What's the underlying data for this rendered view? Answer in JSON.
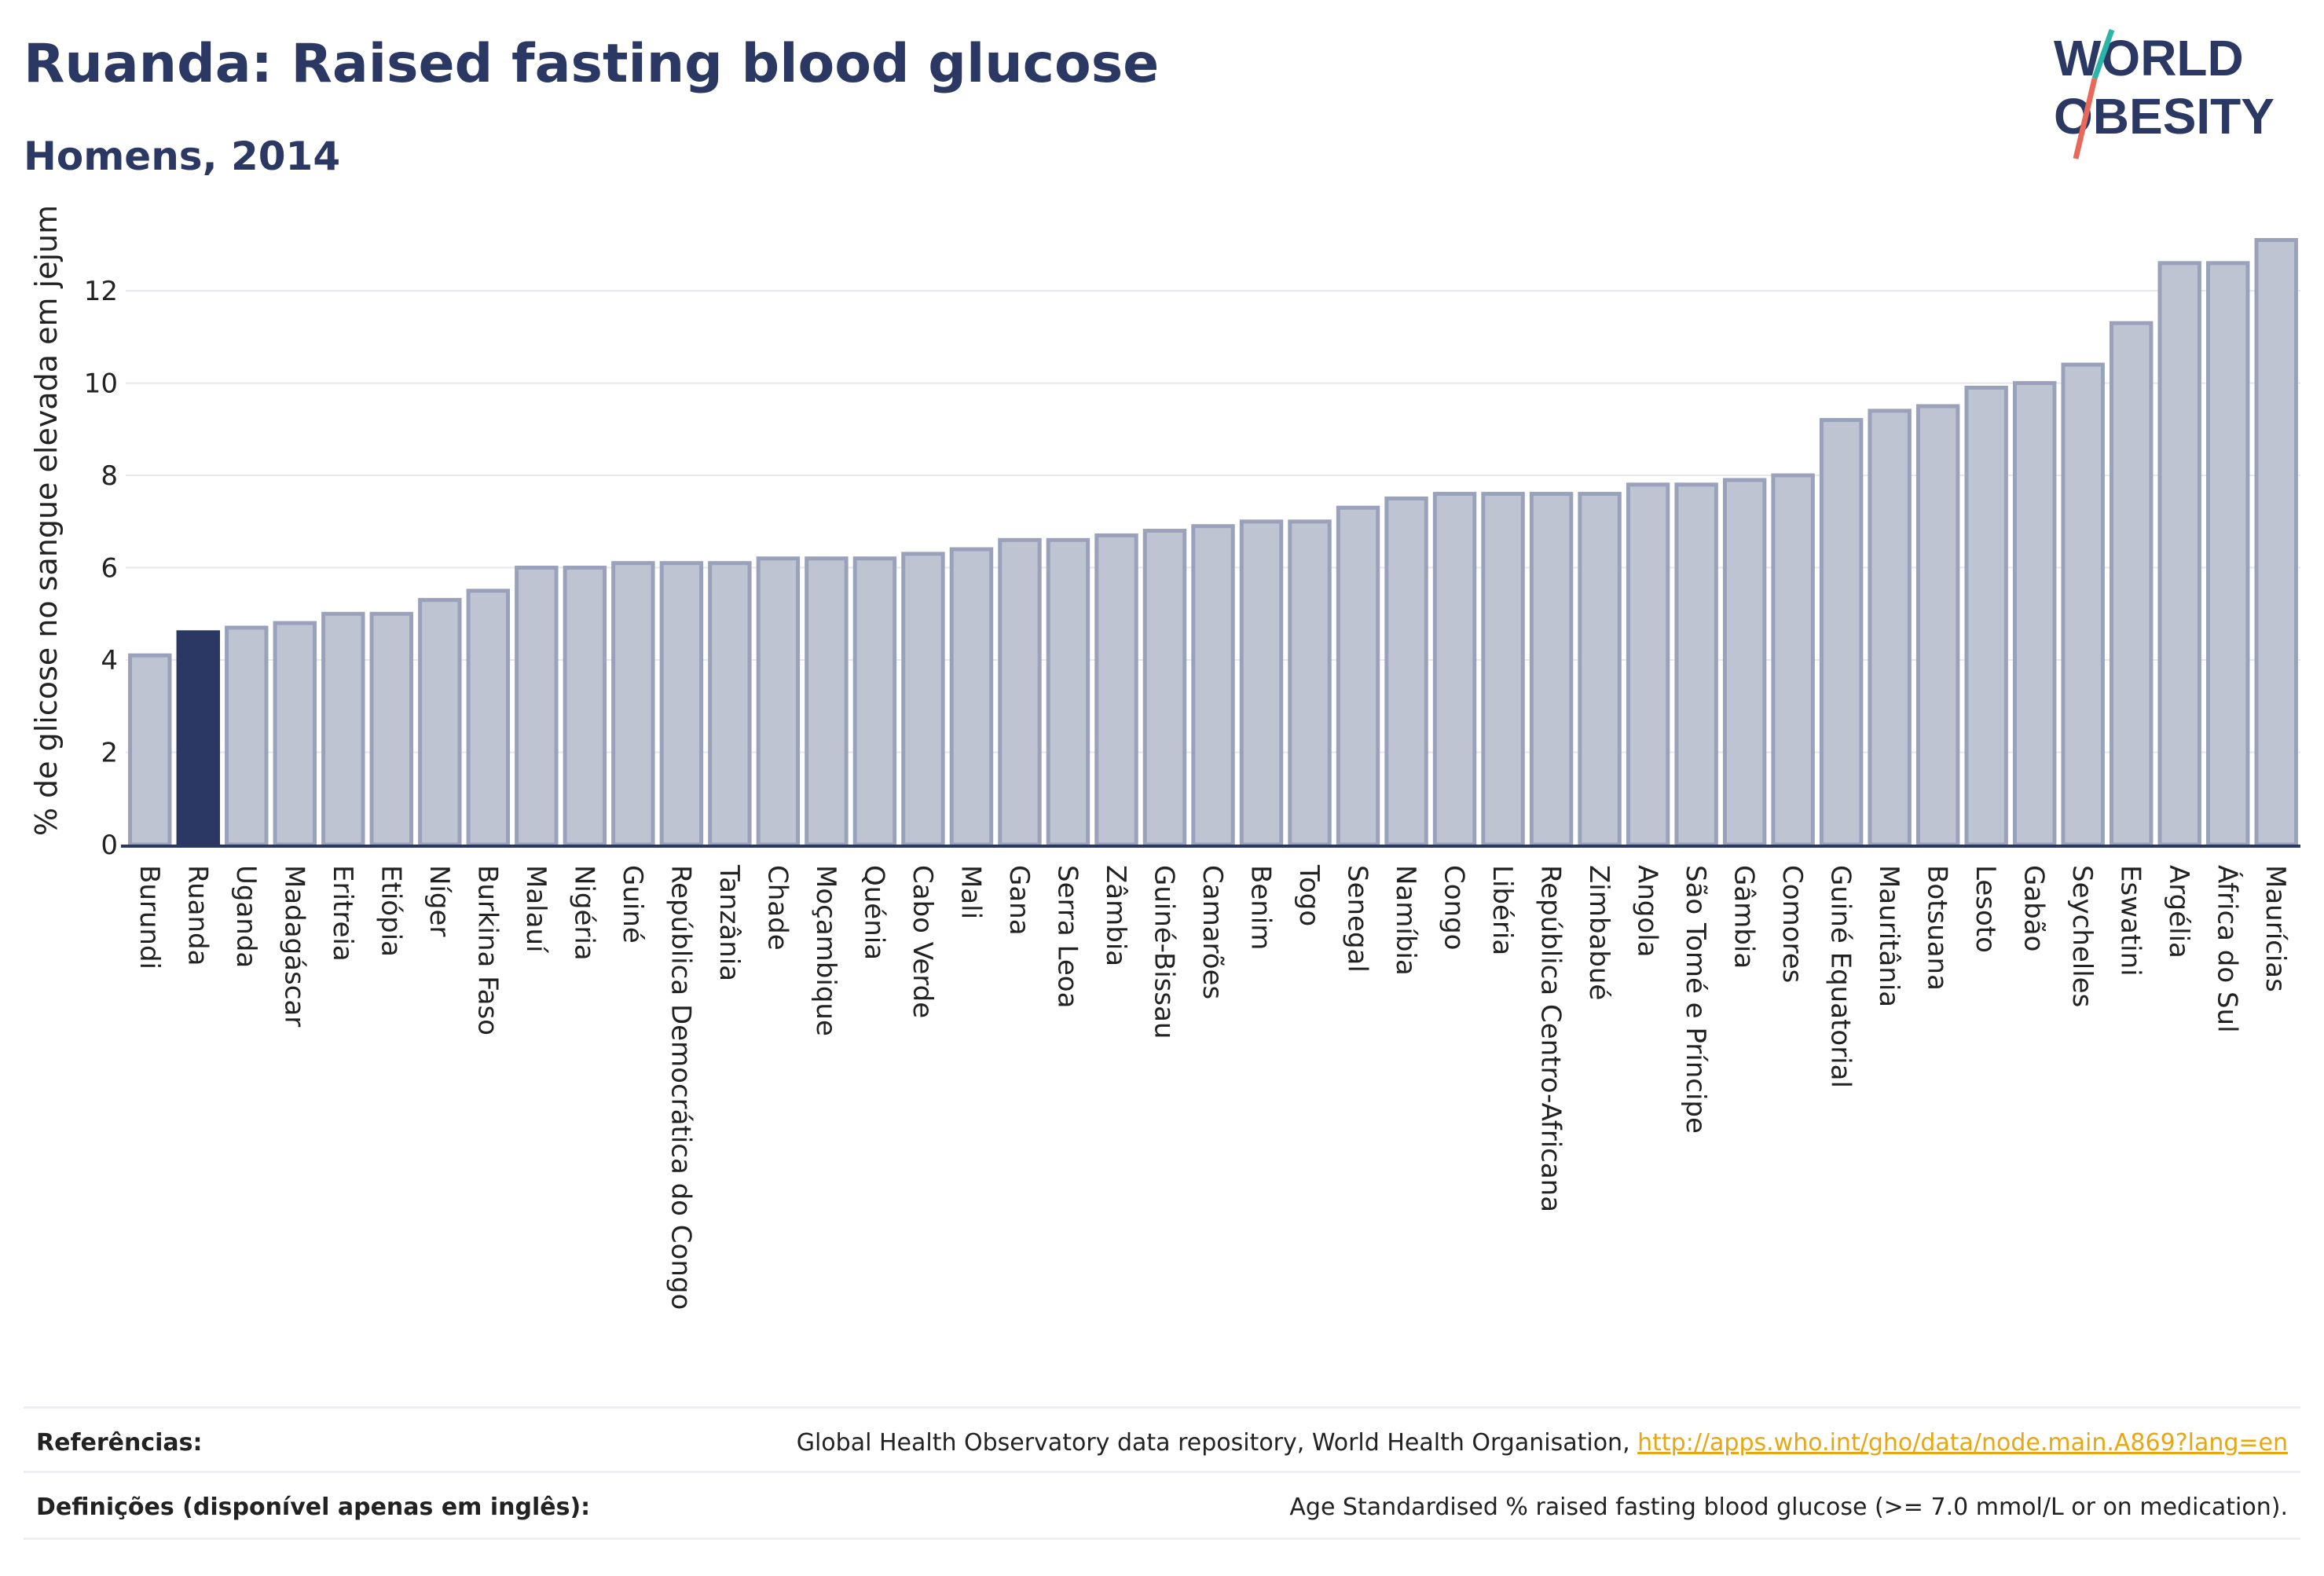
{
  "title": "Ruanda: Raised fasting blood glucose",
  "subtitle": "Homens, 2014",
  "logo": {
    "line1": "WORLD",
    "line2": "OBESITY"
  },
  "colors": {
    "highlight": "#2b3864",
    "bar_fill": "#bfc4d2",
    "bar_stroke": "#9aa2bb",
    "grid": "#e6e7ec",
    "axis": "#2b3864",
    "link": "#e9a70f"
  },
  "footer": {
    "references_label": "Referências:",
    "references_text": "Global Health Observatory data repository, World Health Organisation, ",
    "references_link": "http://apps.who.int/gho/data/node.main.A869?lang=en",
    "definitions_label": "Definições (disponível apenas em inglês):",
    "definitions_text": "Age Standardised % raised fasting blood glucose (>= 7.0 mmol/L or on medication)."
  },
  "chart_data": {
    "type": "bar",
    "ylabel": "% de glicose no sangue elevada em jejum",
    "xlabel": "",
    "ylim": [
      0,
      13.5
    ],
    "yticks": [
      0,
      2,
      4,
      6,
      8,
      10,
      12
    ],
    "grid": true,
    "highlight": "Ruanda",
    "categories": [
      "Burundi",
      "Ruanda",
      "Uganda",
      "Madagáscar",
      "Eritreia",
      "Etiópia",
      "Níger",
      "Burkina Faso",
      "Malauí",
      "Nigéria",
      "Guiné",
      "República Democrática do Congo",
      "Tanzânia",
      "Chade",
      "Moçambique",
      "Quénia",
      "Cabo Verde",
      "Mali",
      "Gana",
      "Serra Leoa",
      "Zâmbia",
      "Guiné-Bissau",
      "Camarões",
      "Benim",
      "Togo",
      "Senegal",
      "Namíbia",
      "Congo",
      "Libéria",
      "República Centro-Africana",
      "Zimbabué",
      "Angola",
      "São Tomé e Príncipe",
      "Gâmbia",
      "Comores",
      "Guiné Equatorial",
      "Mauritânia",
      "Botsuana",
      "Lesoto",
      "Gabão",
      "Seychelles",
      "Eswatini",
      "Argélia",
      "África do Sul",
      "Maurícias"
    ],
    "values": [
      4.1,
      4.6,
      4.7,
      4.8,
      5.0,
      5.0,
      5.3,
      5.5,
      6.0,
      6.0,
      6.1,
      6.1,
      6.1,
      6.2,
      6.2,
      6.2,
      6.3,
      6.4,
      6.6,
      6.6,
      6.7,
      6.8,
      6.9,
      7.0,
      7.0,
      7.3,
      7.5,
      7.6,
      7.6,
      7.6,
      7.6,
      7.8,
      7.8,
      7.9,
      8.0,
      9.2,
      9.4,
      9.5,
      9.9,
      10.0,
      10.4,
      11.3,
      12.6,
      12.6,
      13.1
    ]
  }
}
